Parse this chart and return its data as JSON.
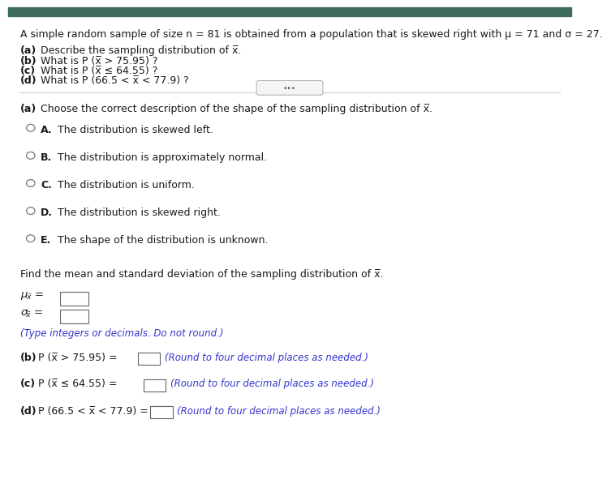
{
  "bg_color": "#ffffff",
  "top_bar_color": "#3d6b5e",
  "title_line": "A simple random sample of size n = 81 is obtained from a population that is skewed right with μ = 71 and σ = 27.",
  "parts_top": [
    "Describe the sampling distribution of x̅.",
    "What is P (x̅ > 75.95) ?",
    "What is P (x̅ ≤ 64.55) ?",
    "What is P (66.5 < x̅ < 77.9) ?"
  ],
  "bold_labels": [
    "(a)",
    "(b)",
    "(c)",
    "(d)"
  ],
  "section_a_header_bold": "(a)",
  "section_a_header_rest": " Choose the correct description of the shape of the sampling distribution of x̅.",
  "choices": [
    "The distribution is skewed left.",
    "The distribution is approximately normal.",
    "The distribution is uniform.",
    "The distribution is skewed right.",
    "The shape of the distribution is unknown."
  ],
  "choice_labels": [
    "A.",
    "B.",
    "C.",
    "D.",
    "E."
  ],
  "find_text": "Find the mean and standard deviation of the sampling distribution of x̅.",
  "type_note": "(Type integers or decimals. Do not round.)",
  "part_b_note": "(Round to four decimal places as needed.)",
  "part_c_note": "(Round to four decimal places as needed.)",
  "part_d_note": "(Round to four decimal places as needed.)",
  "font_size": 9.0,
  "font_size_small": 8.5
}
